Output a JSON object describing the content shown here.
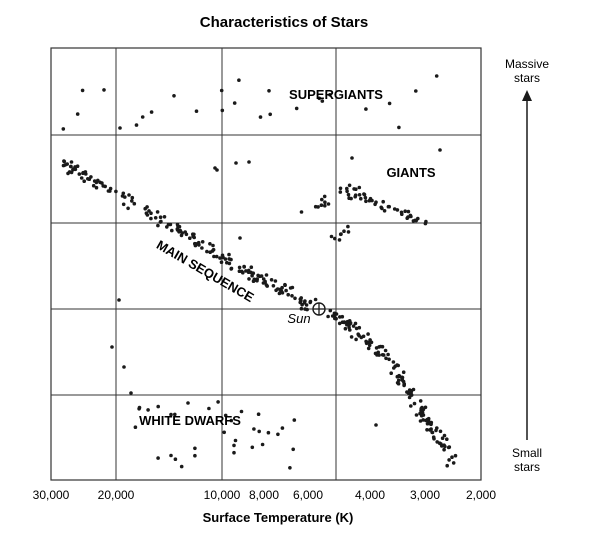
{
  "chart_data": {
    "type": "scatter",
    "title": "Characteristics of Stars",
    "xlabel": "Surface Temperature (K)",
    "ylabel": "",
    "x_ticks": [
      {
        "value": 30000,
        "label": "30,000"
      },
      {
        "value": 20000,
        "label": "20,000"
      },
      {
        "value": 10000,
        "label": "10,000"
      },
      {
        "value": 8000,
        "label": "8,000"
      },
      {
        "value": 6000,
        "label": "6,000"
      },
      {
        "value": 4000,
        "label": "4,000"
      },
      {
        "value": 3000,
        "label": "3,000"
      },
      {
        "value": 2000,
        "label": "2,000"
      }
    ],
    "xlim": [
      30000,
      2000
    ],
    "x_axis_reversed": true,
    "grid": true,
    "y_arrow": {
      "top_label": [
        "Massive",
        "stars"
      ],
      "bottom_label": [
        "Small",
        "stars"
      ]
    },
    "regions": [
      {
        "label": "SUPERGIANTS"
      },
      {
        "label": "GIANTS"
      },
      {
        "label": "MAIN SEQUENCE"
      },
      {
        "label": "WHITE DWARFS"
      }
    ],
    "sun": {
      "label": "Sun",
      "temperature": 5800
    },
    "colors": {
      "points": "#1a1a1a",
      "grid": "#333333"
    }
  }
}
